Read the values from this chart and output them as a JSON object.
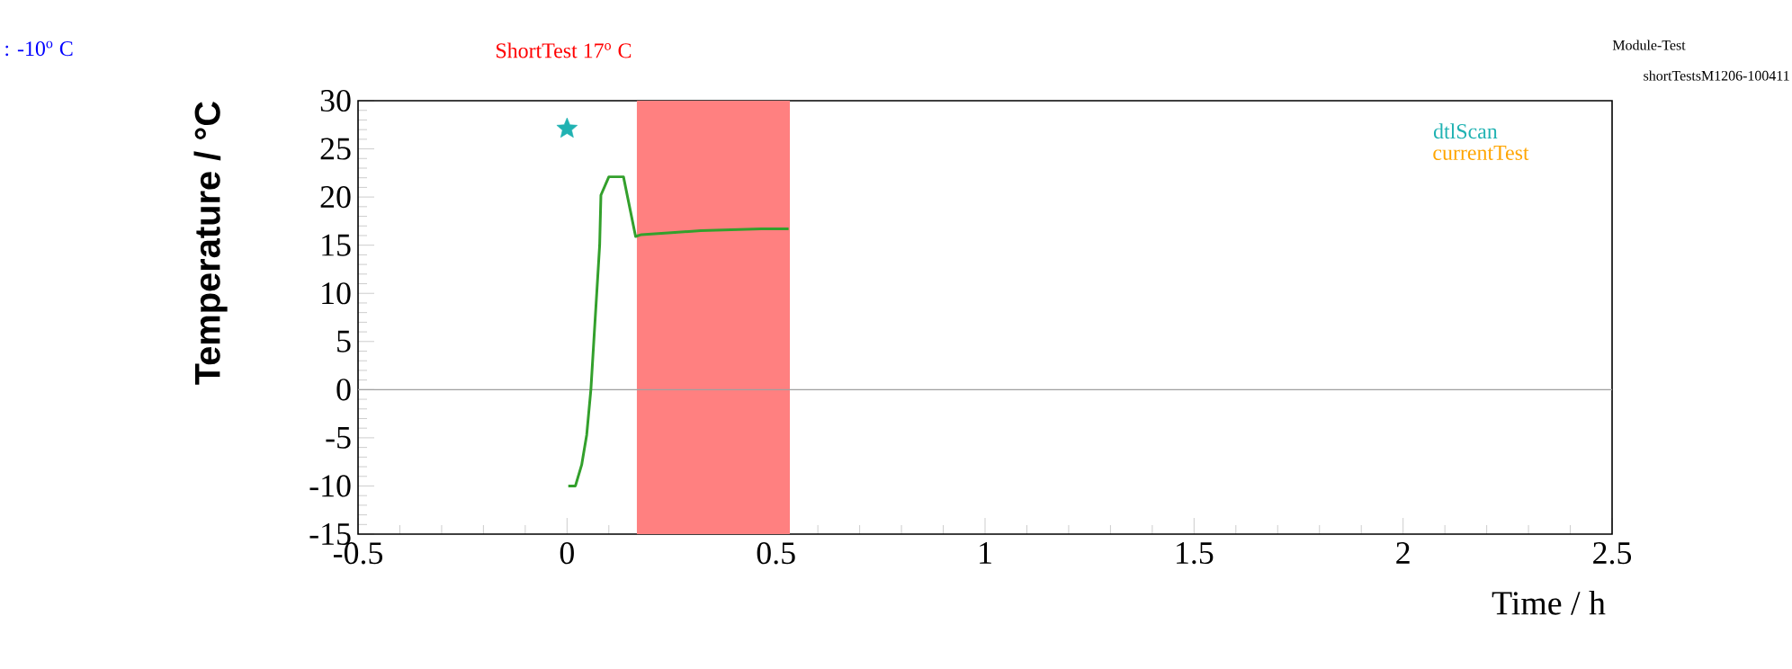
{
  "chart_data": {
    "type": "line",
    "xlabel": "Time / h",
    "ylabel": "Temperature / °C",
    "xlim": [
      -0.5,
      2.5
    ],
    "xticks": [
      -0.5,
      0,
      0.5,
      1,
      1.5,
      2,
      2.5
    ],
    "ylim": [
      -15,
      30
    ],
    "yticks": [
      -15,
      -10,
      -5,
      0,
      5,
      10,
      15,
      20,
      25,
      30
    ],
    "series": [
      {
        "type": "line",
        "color": "#33a02c",
        "x": [
          0.003,
          0.02,
          0.035,
          0.047,
          0.057,
          0.064,
          0.071,
          0.078,
          0.081,
          0.1,
          0.135,
          0.164,
          0.178,
          0.25,
          0.32,
          0.465,
          0.53
        ],
        "values": [
          -10,
          -10,
          -7.8,
          -4.7,
          0,
          5,
          10,
          15,
          20.2,
          22.1,
          22.1,
          15.9,
          16.1,
          16.3,
          16.5,
          16.7,
          16.7
        ]
      },
      {
        "type": "scatter",
        "name": "dtlScan",
        "color": "#20b2b2",
        "marker": "star",
        "x": [
          0
        ],
        "values": [
          27.1
        ]
      }
    ],
    "bands": [
      {
        "axis": "x",
        "from": 0.167,
        "to": 0.533,
        "color": "#ff8080"
      }
    ],
    "ref_lines": [
      {
        "axis": "y",
        "value": 0,
        "color": "#a0a0a0"
      }
    ],
    "legend": "top right",
    "annotations": [
      ": -10$^{o}$ C",
      "ShortTest 17$^{o}$ C",
      "Module-Test",
      "shortTestsM1206-100411",
      "currentTest"
    ]
  }
}
